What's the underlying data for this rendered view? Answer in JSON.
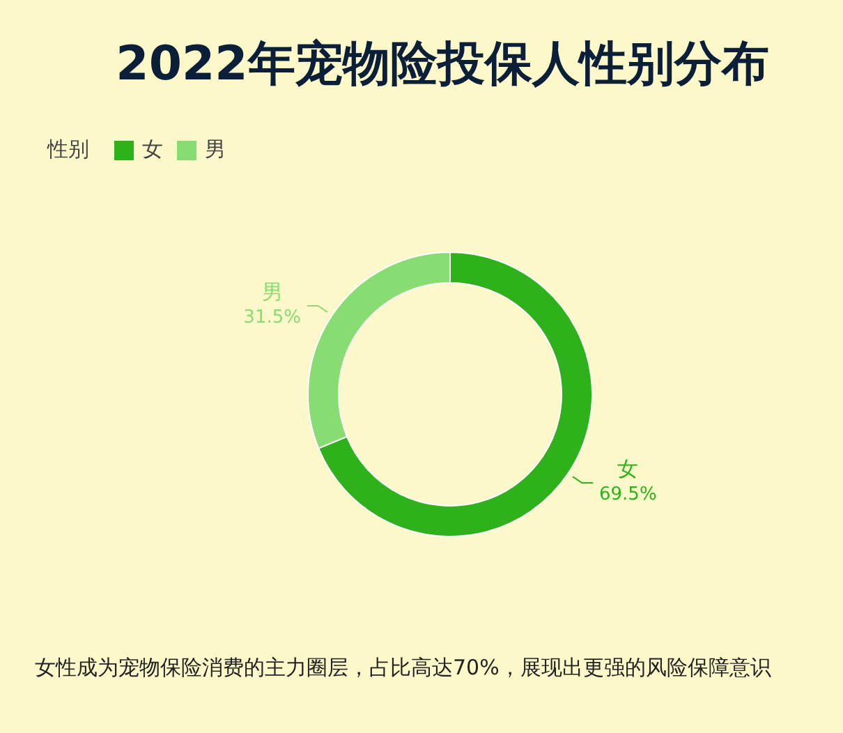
{
  "chart_data": {
    "type": "donut",
    "title": "2022年宠物险投保人性别分布",
    "legend_title": "性别",
    "legend": "top left",
    "categories": [
      "女",
      "男"
    ],
    "values": [
      69.5,
      31.5
    ],
    "colors": [
      "#2eb11a",
      "#87dc72"
    ],
    "value_labels": [
      "69.5%",
      "31.5%"
    ],
    "annotations": [
      "女性成为宠物保险消费的主力圈层，占比高达70%，展现出更强的风险保障意识"
    ]
  }
}
